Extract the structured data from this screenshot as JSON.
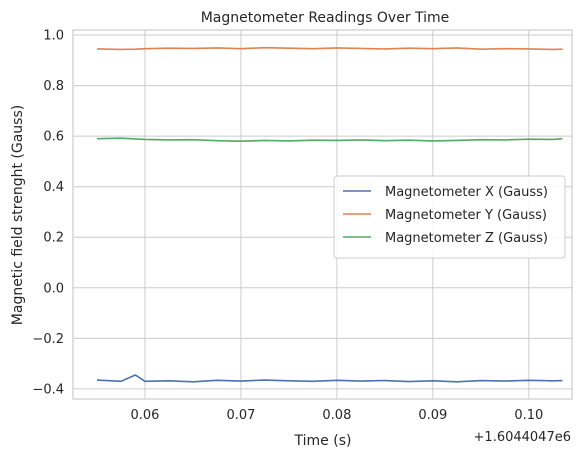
{
  "chart_data": {
    "type": "line",
    "title": "Magnetometer Readings Over Time",
    "xlabel": "Time (s)",
    "ylabel": "Magnetic field strenght (Gauss)",
    "x_offset_label": "+1.6044047e6",
    "xlim": [
      0.0525,
      0.1045
    ],
    "ylim": [
      -0.44,
      1.02
    ],
    "x_ticks": [
      0.06,
      0.07,
      0.08,
      0.09,
      0.1
    ],
    "x_tick_labels": [
      "0.06",
      "0.07",
      "0.08",
      "0.09",
      "0.10"
    ],
    "y_ticks": [
      -0.4,
      -0.2,
      0.0,
      0.2,
      0.4,
      0.6,
      0.8,
      1.0
    ],
    "y_tick_labels": [
      "−0.4",
      "−0.2",
      "0.0",
      "0.2",
      "0.4",
      "0.6",
      "0.8",
      "1.0"
    ],
    "grid": true,
    "legend_position": "center-right",
    "x": [
      0.055,
      0.0575,
      0.059,
      0.06,
      0.0625,
      0.065,
      0.0675,
      0.07,
      0.0725,
      0.075,
      0.0775,
      0.08,
      0.0825,
      0.085,
      0.0875,
      0.09,
      0.0925,
      0.095,
      0.0975,
      0.1,
      0.1025,
      0.1035
    ],
    "series": [
      {
        "name": "Magnetometer X (Gauss)",
        "color": "#4c72b0",
        "values": [
          -0.365,
          -0.37,
          -0.345,
          -0.37,
          -0.368,
          -0.372,
          -0.366,
          -0.369,
          -0.365,
          -0.368,
          -0.37,
          -0.366,
          -0.369,
          -0.367,
          -0.371,
          -0.368,
          -0.372,
          -0.367,
          -0.369,
          -0.366,
          -0.368,
          -0.367
        ]
      },
      {
        "name": "Magnetometer Y (Gauss)",
        "color": "#dd8452",
        "values": [
          0.945,
          0.943,
          0.944,
          0.946,
          0.948,
          0.947,
          0.949,
          0.946,
          0.95,
          0.948,
          0.946,
          0.949,
          0.947,
          0.945,
          0.948,
          0.946,
          0.949,
          0.944,
          0.946,
          0.945,
          0.943,
          0.944
        ]
      },
      {
        "name": "Magnetometer Z (Gauss)",
        "color": "#55a868",
        "values": [
          0.59,
          0.592,
          0.589,
          0.587,
          0.585,
          0.586,
          0.582,
          0.58,
          0.583,
          0.581,
          0.584,
          0.583,
          0.585,
          0.582,
          0.584,
          0.581,
          0.583,
          0.586,
          0.585,
          0.588,
          0.587,
          0.59
        ]
      }
    ]
  }
}
